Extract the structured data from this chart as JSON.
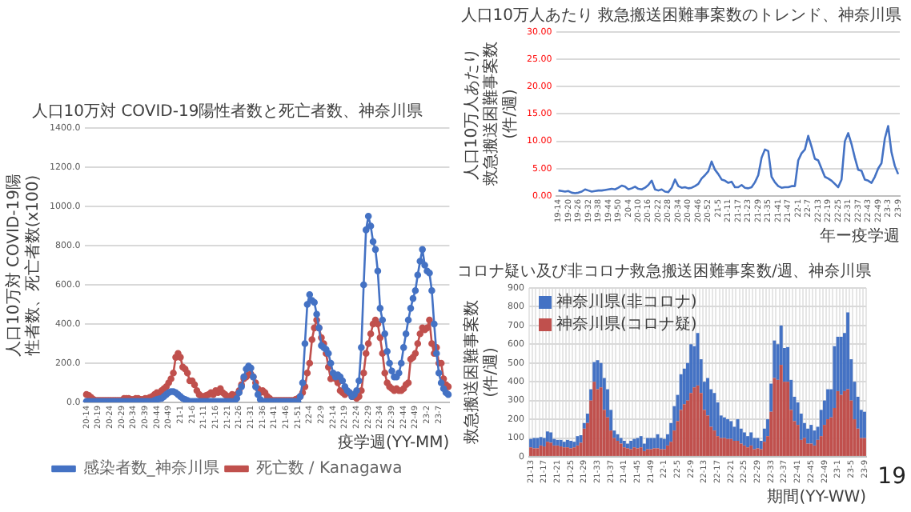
{
  "chart_data": [
    {
      "type": "line",
      "title": "人口10万対 COVID-19陽性者数と死亡者数、神奈川県",
      "xlabel": "疫学週(YY-MM)",
      "ylabel": "人口10万対 COVID-19陽性者数、死亡者数(x100)",
      "categories": [
        "20-14",
        null,
        null,
        null,
        null,
        "20-19",
        null,
        null,
        null,
        null,
        "20-24",
        null,
        null,
        null,
        null,
        "20-29",
        null,
        null,
        null,
        null,
        "20-34",
        null,
        null,
        null,
        null,
        "20-39",
        null,
        null,
        null,
        null,
        "20-44",
        null,
        null,
        null,
        null,
        "20-49",
        null,
        null,
        null,
        null,
        "21-1",
        null,
        null,
        null,
        null,
        "21-6",
        null,
        null,
        null,
        null,
        "21-11",
        null,
        null,
        null,
        null,
        "21-16",
        null,
        null,
        null,
        null,
        "21-21",
        null,
        null,
        null,
        null,
        "21-26",
        null,
        null,
        null,
        null,
        "21-31",
        null,
        null,
        null,
        null,
        "21-36",
        null,
        null,
        null,
        null,
        "21-41",
        null,
        null,
        null,
        null,
        "21-46",
        null,
        null,
        null,
        null,
        "21-51",
        null,
        null,
        null,
        null,
        "22-4",
        null,
        null,
        null,
        null,
        "22-9",
        null,
        null,
        null,
        null,
        "22-14",
        null,
        null,
        null,
        null,
        "22-19",
        null,
        null,
        null,
        null,
        "22-24",
        null,
        null,
        null,
        null,
        "22-29",
        null,
        null,
        null,
        null,
        "22-34",
        null,
        null,
        null,
        null,
        "22-39",
        null,
        null,
        null,
        null,
        "22-44",
        null,
        null,
        null,
        null,
        "22-49",
        null,
        null,
        null,
        null,
        "23-2",
        null,
        null,
        null,
        null,
        "23-7",
        null,
        null,
        null,
        null
      ],
      "series": [
        {
          "name": "感染者数_神奈川県",
          "color": "#4472c4",
          "values": [
            5,
            5,
            5,
            5,
            5,
            5,
            5,
            5,
            5,
            5,
            5,
            5,
            5,
            5,
            5,
            5,
            5,
            5,
            5,
            5,
            5,
            5,
            5,
            5,
            5,
            5,
            5,
            5,
            5,
            10,
            15,
            18,
            20,
            30,
            40,
            50,
            55,
            55,
            50,
            40,
            30,
            20,
            15,
            10,
            5,
            5,
            5,
            5,
            5,
            5,
            5,
            5,
            5,
            5,
            5,
            5,
            5,
            5,
            5,
            5,
            5,
            5,
            5,
            5,
            20,
            50,
            80,
            130,
            170,
            185,
            175,
            130,
            80,
            40,
            15,
            5,
            5,
            5,
            5,
            5,
            5,
            5,
            5,
            5,
            5,
            5,
            5,
            5,
            5,
            5,
            5,
            30,
            100,
            300,
            500,
            550,
            520,
            510,
            450,
            380,
            290,
            280,
            270,
            250,
            200,
            150,
            130,
            140,
            130,
            110,
            80,
            60,
            50,
            30,
            40,
            60,
            110,
            280,
            600,
            880,
            950,
            900,
            820,
            780,
            670,
            480,
            420,
            350,
            260,
            200,
            160,
            130,
            130,
            150,
            200,
            280,
            350,
            420,
            480,
            530,
            570,
            650,
            720,
            780,
            700,
            670,
            660,
            570,
            400,
            250,
            150,
            100,
            70,
            50,
            40
          ]
        },
        {
          "name": "死亡数 / Kanagawa",
          "color": "#c0504d",
          "values": [
            40,
            35,
            25,
            15,
            10,
            10,
            10,
            10,
            10,
            10,
            10,
            10,
            10,
            10,
            10,
            10,
            20,
            20,
            20,
            15,
            15,
            20,
            20,
            15,
            15,
            20,
            20,
            25,
            30,
            40,
            50,
            45,
            60,
            70,
            80,
            100,
            120,
            150,
            230,
            250,
            230,
            180,
            170,
            150,
            110,
            110,
            90,
            60,
            40,
            30,
            30,
            35,
            40,
            50,
            40,
            60,
            50,
            70,
            50,
            40,
            30,
            30,
            40,
            30,
            40,
            60,
            90,
            120,
            130,
            140,
            145,
            130,
            100,
            70,
            50,
            60,
            50,
            30,
            20,
            10,
            10,
            10,
            10,
            10,
            10,
            10,
            10,
            10,
            10,
            15,
            20,
            30,
            50,
            80,
            150,
            200,
            320,
            380,
            420,
            380,
            330,
            300,
            250,
            180,
            120,
            130,
            120,
            100,
            60,
            50,
            40,
            50,
            50,
            30,
            30,
            20,
            30,
            60,
            150,
            250,
            300,
            350,
            400,
            420,
            400,
            330,
            250,
            150,
            100,
            80,
            70,
            60,
            70,
            60,
            60,
            70,
            90,
            100,
            220,
            230,
            250,
            300,
            350,
            380,
            370,
            380,
            420,
            300,
            250,
            280,
            200,
            200,
            120,
            90,
            80
          ]
        }
      ],
      "ylim": [
        0,
        1400
      ],
      "yticks": [
        {
          "value": 0,
          "label": "0.0"
        },
        {
          "value": 200,
          "label": "200.0"
        },
        {
          "value": 400,
          "label": "400.0"
        },
        {
          "value": 600,
          "label": "600.0"
        },
        {
          "value": 800,
          "label": "800.0"
        },
        {
          "value": 1000,
          "label": "1000.0"
        },
        {
          "value": 1200,
          "label": "1200.0"
        },
        {
          "value": 1400,
          "label": "1400.0"
        }
      ],
      "grid": "y",
      "legend": "bottom",
      "marker": "circle"
    },
    {
      "type": "line",
      "title": "人口10万人あたり 救急搬送困難事案数のトレンド、神奈川県",
      "xlabel": "年ー疫学週",
      "ylabel": "人口10万人あたり救急搬送困難事案数(件/週)",
      "categories": [
        "19-14",
        null,
        null,
        "19-20",
        null,
        null,
        "19-26",
        null,
        null,
        "19-32",
        null,
        null,
        "19-38",
        null,
        null,
        "19-44",
        null,
        null,
        "19-50",
        null,
        null,
        "20-4",
        null,
        null,
        "20-10",
        null,
        null,
        "20-16",
        null,
        null,
        "20-22",
        null,
        null,
        "20-28",
        null,
        null,
        "20-34",
        null,
        null,
        "20-40",
        null,
        null,
        "20-46",
        null,
        null,
        "20-52",
        null,
        null,
        "21-5",
        null,
        null,
        "21-11",
        null,
        null,
        "21-17",
        null,
        null,
        "21-23",
        null,
        null,
        "21-29",
        null,
        null,
        "21-35",
        null,
        null,
        "21-41",
        null,
        null,
        "21-47",
        null,
        null,
        "22-1",
        null,
        null,
        "22-7",
        null,
        null,
        "22-13",
        null,
        null,
        "22-19",
        null,
        null,
        "22-25",
        null,
        null,
        "22-31",
        null,
        null,
        "22-37",
        null,
        null,
        "22-43",
        null,
        null,
        "22-49",
        null,
        null,
        "23-3",
        null,
        null,
        "23-9"
      ],
      "series": [
        {
          "color": "#4472c4",
          "values": [
            1.0,
            0.9,
            0.8,
            0.9,
            0.6,
            0.5,
            0.6,
            0.8,
            1.2,
            1.0,
            0.8,
            0.9,
            1.0,
            1.0,
            1.1,
            1.2,
            1.3,
            1.2,
            1.5,
            1.9,
            1.7,
            1.2,
            1.4,
            1.7,
            1.3,
            1.2,
            1.5,
            2.0,
            2.8,
            1.2,
            1.0,
            1.2,
            0.8,
            0.7,
            1.5,
            3.0,
            1.8,
            1.5,
            1.6,
            1.4,
            1.5,
            1.8,
            2.2,
            3.2,
            3.8,
            4.5,
            6.3,
            4.8,
            4.0,
            3.0,
            2.8,
            2.4,
            2.6,
            1.6,
            1.6,
            2.0,
            1.5,
            1.4,
            1.6,
            2.5,
            3.8,
            7.0,
            8.5,
            8.2,
            3.5,
            2.5,
            1.8,
            1.5,
            1.6,
            1.6,
            1.8,
            1.8,
            6.5,
            7.8,
            8.5,
            11.0,
            9.0,
            6.8,
            6.5,
            5.0,
            3.5,
            3.2,
            2.8,
            2.2,
            1.6,
            3.0,
            10.0,
            11.5,
            9.5,
            7.0,
            4.8,
            4.6,
            3.0,
            2.8,
            2.4,
            3.5,
            5.0,
            6.0,
            10.5,
            12.8,
            8.0,
            5.5,
            4.0
          ]
        }
      ],
      "ylim": [
        0,
        30
      ],
      "yticks": [
        {
          "value": 0,
          "label": "0.00"
        },
        {
          "value": 5,
          "label": "5.00"
        },
        {
          "value": 10,
          "label": "10.00"
        },
        {
          "value": 15,
          "label": "15.00"
        },
        {
          "value": 20,
          "label": "20.00"
        },
        {
          "value": 25,
          "label": "25.00"
        },
        {
          "value": 30,
          "label": "30.00"
        }
      ],
      "grid": "y"
    },
    {
      "type": "bar",
      "stacked": true,
      "title": "コロナ疑い及び非コロナ救急搬送困難事案数/週、神奈川県",
      "xlabel": "期間(YY-WW)",
      "ylabel": "救急搬送困難事案数(件/週)",
      "categories": [
        "21-13",
        null,
        null,
        null,
        "21-17",
        null,
        null,
        null,
        "21-21",
        null,
        null,
        null,
        "21-25",
        null,
        null,
        null,
        "21-29",
        null,
        null,
        null,
        "21-33",
        null,
        null,
        null,
        "21-37",
        null,
        null,
        null,
        "21-41",
        null,
        null,
        null,
        "21-45",
        null,
        null,
        null,
        "21-49",
        null,
        null,
        null,
        "22-1",
        null,
        null,
        null,
        "22-5",
        null,
        null,
        null,
        "22-9",
        null,
        null,
        null,
        "22-13",
        null,
        null,
        null,
        "22-17",
        null,
        null,
        null,
        "22-21",
        null,
        null,
        null,
        "22-25",
        null,
        null,
        null,
        "22-29",
        null,
        null,
        null,
        "22-33",
        null,
        null,
        null,
        "22-37",
        null,
        null,
        null,
        "22-41",
        null,
        null,
        null,
        "22-45",
        null,
        null,
        null,
        "22-49",
        null,
        null,
        null,
        "23-1",
        null,
        null,
        null,
        "23-5",
        null,
        null,
        null,
        "23-9"
      ],
      "series": [
        {
          "name": "神奈川県(コロナ疑)",
          "color": "#c0504d",
          "values": [
            50,
            45,
            45,
            60,
            55,
            80,
            75,
            60,
            60,
            55,
            50,
            50,
            45,
            50,
            60,
            75,
            150,
            180,
            300,
            400,
            360,
            370,
            250,
            210,
            140,
            100,
            85,
            70,
            50,
            45,
            40,
            50,
            45,
            50,
            30,
            40,
            40,
            45,
            45,
            40,
            40,
            60,
            80,
            140,
            190,
            250,
            280,
            300,
            340,
            370,
            380,
            340,
            250,
            220,
            160,
            140,
            110,
            100,
            100,
            95,
            95,
            85,
            85,
            70,
            60,
            50,
            60,
            40,
            45,
            40,
            80,
            110,
            240,
            420,
            410,
            490,
            400,
            400,
            250,
            190,
            170,
            90,
            100,
            70,
            70,
            60,
            90,
            110,
            170,
            200,
            210,
            260,
            350,
            330,
            350,
            360,
            300,
            200,
            150,
            100,
            100
          ]
        },
        {
          "name": "神奈川県(非コロナ)",
          "color": "#4472c4",
          "values": [
            45,
            55,
            55,
            45,
            45,
            55,
            55,
            35,
            30,
            35,
            30,
            40,
            40,
            30,
            50,
            40,
            30,
            50,
            60,
            105,
            155,
            130,
            170,
            150,
            110,
            40,
            35,
            30,
            35,
            25,
            45,
            45,
            55,
            60,
            40,
            60,
            60,
            55,
            75,
            60,
            55,
            60,
            100,
            130,
            140,
            190,
            190,
            200,
            260,
            220,
            280,
            180,
            150,
            200,
            200,
            200,
            180,
            120,
            110,
            105,
            95,
            75,
            115,
            80,
            70,
            60,
            70,
            60,
            55,
            45,
            70,
            90,
            150,
            200,
            190,
            210,
            180,
            185,
            160,
            130,
            120,
            140,
            80,
            80,
            100,
            80,
            70,
            140,
            130,
            160,
            150,
            330,
            290,
            310,
            310,
            410,
            220,
            200,
            170,
            150,
            140
          ]
        }
      ],
      "ylim": [
        0,
        900
      ],
      "yticks": [
        0,
        100,
        200,
        300,
        400,
        500,
        600,
        700,
        800,
        900
      ],
      "grid": true,
      "legend": "top left",
      "annotations": [
        "19"
      ]
    }
  ]
}
